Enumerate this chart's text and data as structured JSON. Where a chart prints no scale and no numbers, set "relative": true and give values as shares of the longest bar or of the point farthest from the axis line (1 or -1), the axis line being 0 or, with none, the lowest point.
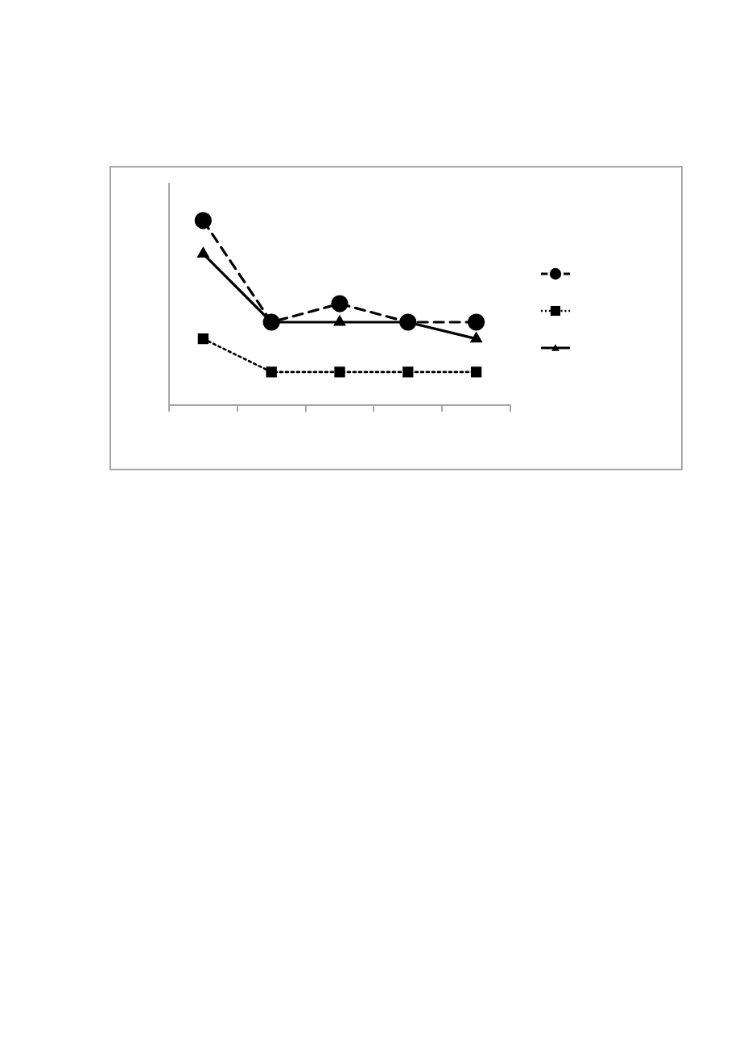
{
  "chart_data": {
    "type": "line",
    "relative": true,
    "categories": [
      null,
      null,
      null,
      null,
      null
    ],
    "series": [
      {
        "color": "#000000",
        "marker": "circle",
        "line_style": "dashed",
        "values": [
          1,
          0.45,
          0.55,
          0.45,
          0.45
        ]
      },
      {
        "color": "#000000",
        "marker": "square",
        "line_style": "dotted",
        "values": [
          0.36,
          0.18,
          0.18,
          0.18,
          0.18
        ]
      },
      {
        "color": "#000000",
        "marker": "triangle",
        "line_style": "solid",
        "values": [
          0.82,
          0.45,
          0.45,
          0.45,
          0.36
        ]
      }
    ]
  }
}
